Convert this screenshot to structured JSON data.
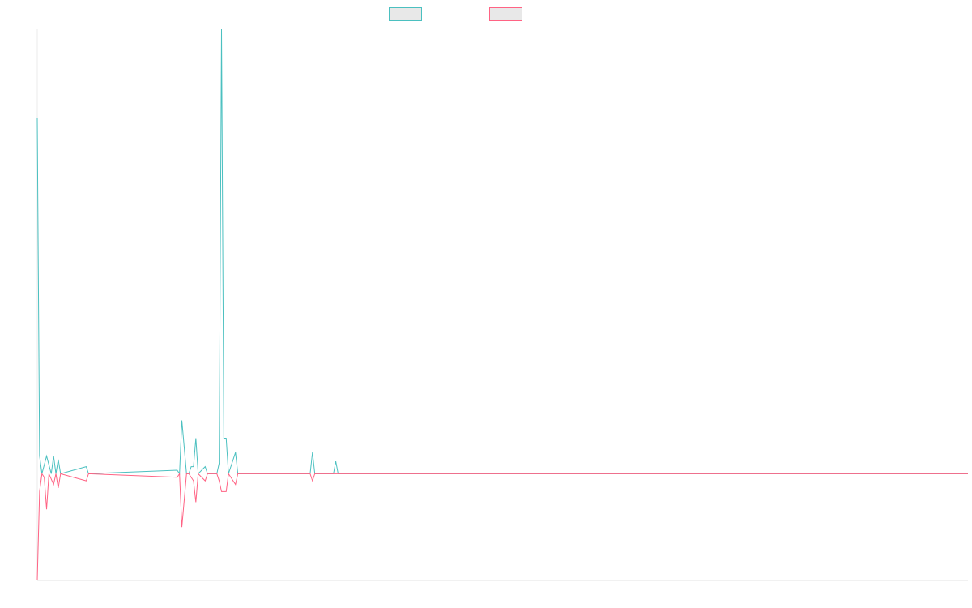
{
  "chart_data": {
    "type": "line",
    "title": "",
    "xlabel": "",
    "ylabel": "",
    "grid": false,
    "legend_position": "top-center",
    "x_count": 400,
    "ylim": [
      -0.3,
      1.25
    ],
    "series": [
      {
        "name": "",
        "color": "#4bc0c0",
        "fill": "#e8e8e8",
        "points": [
          [
            0,
            1.0
          ],
          [
            1,
            0.05
          ],
          [
            2,
            0.0
          ],
          [
            4,
            0.05
          ],
          [
            6,
            0.0
          ],
          [
            7,
            0.05
          ],
          [
            8,
            0.0
          ],
          [
            9,
            0.04
          ],
          [
            10,
            0.0
          ],
          [
            21,
            0.02
          ],
          [
            22,
            0.0
          ],
          [
            60,
            0.01
          ],
          [
            61,
            0.0
          ],
          [
            62,
            0.15
          ],
          [
            64,
            0.0
          ],
          [
            65,
            0.0
          ],
          [
            66,
            0.02
          ],
          [
            67,
            0.02
          ],
          [
            68,
            0.1
          ],
          [
            69,
            0.0
          ],
          [
            72,
            0.02
          ],
          [
            73,
            0.0
          ],
          [
            77,
            0.0
          ],
          [
            78,
            0.03
          ],
          [
            79,
            1.25
          ],
          [
            80,
            0.1
          ],
          [
            81,
            0.1
          ],
          [
            82,
            0.0
          ],
          [
            85,
            0.06
          ],
          [
            86,
            0.0
          ],
          [
            117,
            0.0
          ],
          [
            118,
            0.06
          ],
          [
            119,
            0.0
          ],
          [
            127,
            0.0
          ],
          [
            128,
            0.035
          ],
          [
            129,
            0.0
          ],
          [
            399,
            0.0
          ]
        ]
      },
      {
        "name": "",
        "color": "#ff6384",
        "fill": "#e8e8e8",
        "points": [
          [
            0,
            -0.3
          ],
          [
            1,
            -0.05
          ],
          [
            2,
            0.0
          ],
          [
            3,
            -0.01
          ],
          [
            4,
            -0.1
          ],
          [
            5,
            0.0
          ],
          [
            7,
            -0.03
          ],
          [
            8,
            0.0
          ],
          [
            9,
            -0.04
          ],
          [
            10,
            0.0
          ],
          [
            21,
            -0.02
          ],
          [
            22,
            0.0
          ],
          [
            60,
            -0.01
          ],
          [
            61,
            0.0
          ],
          [
            62,
            -0.15
          ],
          [
            64,
            0.0
          ],
          [
            65,
            0.0
          ],
          [
            67,
            -0.02
          ],
          [
            68,
            -0.08
          ],
          [
            69,
            0.0
          ],
          [
            72,
            -0.02
          ],
          [
            73,
            0.0
          ],
          [
            77,
            0.0
          ],
          [
            78,
            -0.02
          ],
          [
            79,
            -0.05
          ],
          [
            80,
            -0.05
          ],
          [
            81,
            -0.05
          ],
          [
            82,
            0.0
          ],
          [
            85,
            -0.03
          ],
          [
            86,
            0.0
          ],
          [
            117,
            0.0
          ],
          [
            118,
            -0.02
          ],
          [
            119,
            0.0
          ],
          [
            399,
            0.0
          ]
        ]
      }
    ]
  }
}
